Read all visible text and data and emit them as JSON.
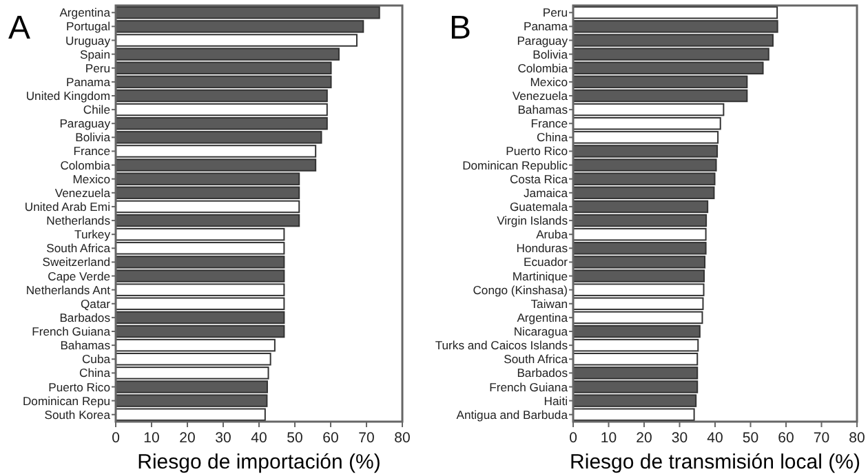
{
  "chart_data": [
    {
      "type": "bar",
      "orientation": "horizontal",
      "title": "A",
      "xlabel": "Riesgo de importación (%)",
      "categories": [
        "Argentina",
        "Portugal",
        "Uruguay",
        "Spain",
        "Peru",
        "Panama",
        "United Kingdom",
        "Chile",
        "Paraguay",
        "Bolivia",
        "France",
        "Colombia",
        "Mexico",
        "Venezuela",
        "United Arab Emi",
        "Netherlands",
        "Turkey",
        "South Africa",
        "Sweitzerland",
        "Cape Verde",
        "Netherlands Ant",
        "Qatar",
        "Barbados",
        "French Guiana",
        "Bahamas",
        "Cuba",
        "China",
        "Puerto Rico",
        "Dominican Repu",
        "South Korea"
      ],
      "values": [
        73.6,
        69.1,
        67.3,
        62.3,
        60.1,
        60.1,
        59,
        59,
        59,
        57.4,
        55.8,
        55.8,
        51.2,
        51.2,
        51.2,
        51.2,
        47,
        47,
        47,
        47,
        47,
        47,
        47,
        47,
        44.4,
        43.2,
        42.6,
        42.3,
        42.2,
        41.7
      ],
      "colors": [
        "#5a5a5a",
        "#5a5a5a",
        "#ffffff",
        "#5a5a5a",
        "#5a5a5a",
        "#5a5a5a",
        "#5a5a5a",
        "#ffffff",
        "#5a5a5a",
        "#5a5a5a",
        "#ffffff",
        "#5a5a5a",
        "#5a5a5a",
        "#5a5a5a",
        "#ffffff",
        "#5a5a5a",
        "#ffffff",
        "#ffffff",
        "#5a5a5a",
        "#5a5a5a",
        "#ffffff",
        "#ffffff",
        "#5a5a5a",
        "#5a5a5a",
        "#ffffff",
        "#ffffff",
        "#ffffff",
        "#5a5a5a",
        "#5a5a5a",
        "#ffffff"
      ],
      "xlim": [
        0,
        80
      ],
      "xticks": [
        0,
        10,
        20,
        30,
        40,
        50,
        60,
        70,
        80
      ],
      "grid": false
    },
    {
      "type": "bar",
      "orientation": "horizontal",
      "title": "B",
      "xlabel": "Riesgo de transmisión local (%)",
      "categories": [
        "Peru",
        "Panama",
        "Paraguay",
        "Bolivia",
        "Colombia",
        "Mexico",
        "Venezuela",
        "Bahamas",
        "France",
        "China",
        "Puerto Rico",
        "Dominican Republic",
        "Costa Rica",
        "Jamaica",
        "Guatemala",
        "Virgin Islands",
        "Aruba",
        "Honduras",
        "Ecuador",
        "Martinique",
        "Congo (Kinshasa)",
        "Taiwan",
        "Argentina",
        "Nicaragua",
        "Turks and Caicos Islands",
        "South Africa",
        "Barbados",
        "French Guiana",
        "Haiti",
        "Antigua and Barbuda"
      ],
      "values": [
        57.5,
        57.6,
        56.3,
        55.1,
        53.5,
        49,
        49,
        42.4,
        41.5,
        40.8,
        40.6,
        40.3,
        39.9,
        39.7,
        37.9,
        37.5,
        37.4,
        37.4,
        37.1,
        36.9,
        36.8,
        36.6,
        36.4,
        35.7,
        35.2,
        35,
        35,
        35,
        34.6,
        34.1
      ],
      "colors": [
        "#ffffff",
        "#5a5a5a",
        "#5a5a5a",
        "#5a5a5a",
        "#5a5a5a",
        "#5a5a5a",
        "#5a5a5a",
        "#ffffff",
        "#ffffff",
        "#ffffff",
        "#5a5a5a",
        "#5a5a5a",
        "#5a5a5a",
        "#5a5a5a",
        "#5a5a5a",
        "#5a5a5a",
        "#ffffff",
        "#5a5a5a",
        "#5a5a5a",
        "#5a5a5a",
        "#ffffff",
        "#ffffff",
        "#ffffff",
        "#5a5a5a",
        "#ffffff",
        "#ffffff",
        "#5a5a5a",
        "#5a5a5a",
        "#5a5a5a",
        "#ffffff"
      ],
      "xlim": [
        0,
        80
      ],
      "xticks": [
        0,
        10,
        20,
        30,
        40,
        50,
        60,
        70,
        80
      ],
      "grid": false
    }
  ]
}
